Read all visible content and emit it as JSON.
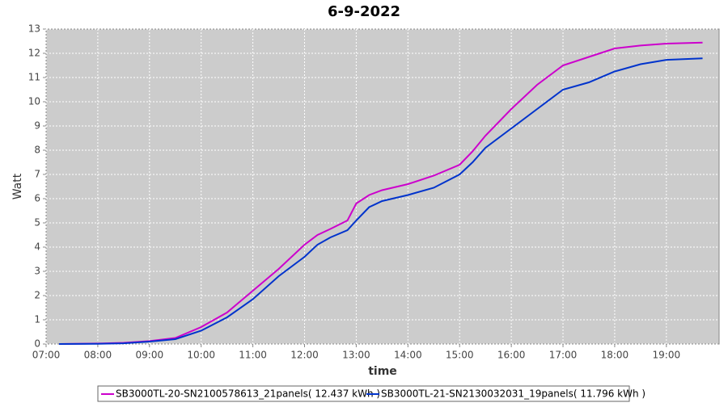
{
  "chart_data": {
    "type": "line",
    "title": "6-9-2022",
    "x_label": "time",
    "y_label": "Watt",
    "x": [
      7.25,
      8,
      8.5,
      9,
      9.5,
      10,
      10.5,
      11,
      11.5,
      12,
      12.25,
      12.5,
      12.83,
      13,
      13.25,
      13.5,
      14,
      14.5,
      15,
      15.25,
      15.5,
      16,
      16.5,
      17,
      17.5,
      18,
      18.5,
      19,
      19.7
    ],
    "series": [
      {
        "name": "SB3000TL-20-SN2100578613_21panels( 12.437 kWh )",
        "color": "#cc00cc",
        "values": [
          0,
          0.02,
          0.05,
          0.12,
          0.25,
          0.7,
          1.3,
          2.2,
          3.1,
          4.1,
          4.5,
          4.75,
          5.1,
          5.8,
          6.15,
          6.35,
          6.6,
          6.95,
          7.4,
          7.95,
          8.6,
          9.7,
          10.7,
          11.5,
          11.85,
          12.2,
          12.32,
          12.4,
          12.44
        ]
      },
      {
        "name": "SB3000TL-21-SN2130032031_19panels( 11.796 kWh )",
        "color": "#0033cc",
        "values": [
          0,
          0.01,
          0.03,
          0.1,
          0.2,
          0.55,
          1.1,
          1.85,
          2.8,
          3.6,
          4.1,
          4.4,
          4.7,
          5.1,
          5.65,
          5.9,
          6.15,
          6.45,
          7.0,
          7.5,
          8.1,
          8.9,
          9.7,
          10.5,
          10.8,
          11.25,
          11.55,
          11.73,
          11.79
        ]
      }
    ],
    "xlim": [
      7,
      20.02
    ],
    "xticks": [
      {
        "value": 7,
        "label": "07:00"
      },
      {
        "value": 8,
        "label": "08:00"
      },
      {
        "value": 9,
        "label": "09:00"
      },
      {
        "value": 10,
        "label": "10:00"
      },
      {
        "value": 11,
        "label": "11:00"
      },
      {
        "value": 12,
        "label": "12:00"
      },
      {
        "value": 13,
        "label": "13:00"
      },
      {
        "value": 14,
        "label": "14:00"
      },
      {
        "value": 15,
        "label": "15:00"
      },
      {
        "value": 16,
        "label": "16:00"
      },
      {
        "value": 17,
        "label": "17:00"
      },
      {
        "value": 18,
        "label": "18:00"
      },
      {
        "value": 19,
        "label": "19:00"
      }
    ],
    "ylim": [
      0,
      13
    ],
    "yticks": [
      0,
      1,
      2,
      3,
      4,
      5,
      6,
      7,
      8,
      9,
      10,
      11,
      12,
      13
    ],
    "grid": true
  }
}
